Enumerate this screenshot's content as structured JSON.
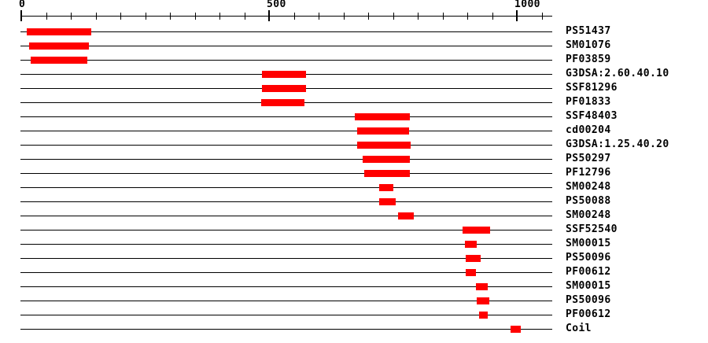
{
  "chart_data": {
    "type": "bar",
    "orientation": "horizontal",
    "title": "",
    "xlabel": "",
    "ylabel": "",
    "xlim": [
      0,
      1071
    ],
    "grid": false,
    "legend": "none",
    "axis": {
      "position": "top",
      "major_ticks": [
        {
          "value": 0,
          "label": "0"
        },
        {
          "value": 500,
          "label": "500"
        },
        {
          "value": 1000,
          "label": "1000"
        }
      ],
      "minor_tick_interval": 50,
      "minor_tick_range": [
        0,
        1050
      ]
    },
    "rows": [
      {
        "label": "PS51437",
        "start": 11,
        "end": 141
      },
      {
        "label": "SM01076",
        "start": 16,
        "end": 136
      },
      {
        "label": "PF03859",
        "start": 19,
        "end": 133
      },
      {
        "label": "G3DSA:2.60.40.10",
        "start": 485,
        "end": 575
      },
      {
        "label": "SSF81296",
        "start": 486,
        "end": 575
      },
      {
        "label": "PF01833",
        "start": 484,
        "end": 571
      },
      {
        "label": "SSF48403",
        "start": 673,
        "end": 784
      },
      {
        "label": "cd00204",
        "start": 678,
        "end": 782
      },
      {
        "label": "G3DSA:1.25.40.20",
        "start": 678,
        "end": 786
      },
      {
        "label": "PS50297",
        "start": 689,
        "end": 784
      },
      {
        "label": "PF12796",
        "start": 692,
        "end": 784
      },
      {
        "label": "SM00248",
        "start": 722,
        "end": 751
      },
      {
        "label": "PS50088",
        "start": 722,
        "end": 756
      },
      {
        "label": "SM00248",
        "start": 760,
        "end": 792
      },
      {
        "label": "SSF52540",
        "start": 890,
        "end": 946
      },
      {
        "label": "SM00015",
        "start": 895,
        "end": 919
      },
      {
        "label": "PS50096",
        "start": 897,
        "end": 927
      },
      {
        "label": "PF00612",
        "start": 897,
        "end": 917
      },
      {
        "label": "SM00015",
        "start": 917,
        "end": 941
      },
      {
        "label": "PS50096",
        "start": 919,
        "end": 944
      },
      {
        "label": "PF00612",
        "start": 924,
        "end": 941
      },
      {
        "label": "Coil",
        "start": 987,
        "end": 1008
      }
    ],
    "colors": {
      "bar": "#ff0000",
      "axis": "#000000",
      "text": "#000000",
      "background": "#ffffff"
    }
  }
}
